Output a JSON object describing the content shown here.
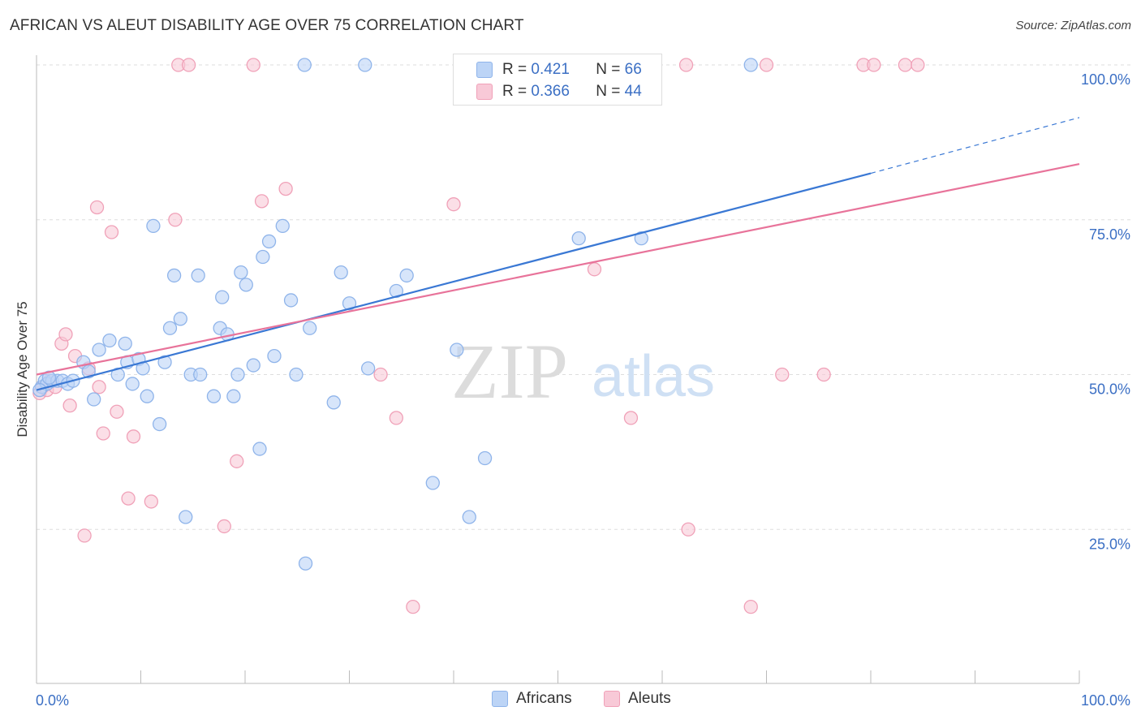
{
  "title": "AFRICAN VS ALEUT DISABILITY AGE OVER 75 CORRELATION CHART",
  "source": "Source: ZipAtlas.com",
  "watermark": {
    "zip": "ZIP",
    "atlas": "atlas"
  },
  "legend": {
    "africans": {
      "label": "Africans",
      "color": "#8fb4ea",
      "fill": "#bcd4f6"
    },
    "aleuts": {
      "label": "Aleuts",
      "color": "#f0a1b8",
      "fill": "#f8c9d7"
    }
  },
  "stats": {
    "africans": {
      "r_label": "R =",
      "r_value": "0.421",
      "n_label": "N =",
      "n_value": "66"
    },
    "aleuts": {
      "r_label": "R =",
      "r_value": "0.366",
      "n_label": "N =",
      "n_value": "44"
    }
  },
  "chart_data": {
    "type": "scatter",
    "title": "AFRICAN VS ALEUT DISABILITY AGE OVER 75 CORRELATION CHART",
    "xlabel": "",
    "ylabel": "Disability Age Over 75",
    "xlim": [
      0,
      100
    ],
    "ylim": [
      0,
      105
    ],
    "x_tick_labels": [
      "0.0%",
      "100.0%"
    ],
    "y_tick_labels": [
      {
        "value": 100,
        "label": "100.0%"
      },
      {
        "value": 75,
        "label": "75.0%"
      },
      {
        "value": 50,
        "label": "50.0%"
      },
      {
        "value": 25,
        "label": "25.0%"
      }
    ],
    "grid": true,
    "legend_position": "bottom",
    "series": [
      {
        "name": "Africans",
        "color": "#3a78d4",
        "points": [
          [
            0.5,
            48
          ],
          [
            0.8,
            49
          ],
          [
            1,
            48.5
          ],
          [
            1.5,
            49
          ],
          [
            2,
            49
          ],
          [
            2.5,
            49
          ],
          [
            3,
            48.5
          ],
          [
            3.5,
            49
          ],
          [
            4.5,
            52
          ],
          [
            5,
            50.5
          ],
          [
            5.5,
            46
          ],
          [
            6,
            54
          ],
          [
            7,
            55.5
          ],
          [
            7.8,
            50
          ],
          [
            8.5,
            55
          ],
          [
            8.7,
            52
          ],
          [
            9.2,
            48.5
          ],
          [
            9.8,
            52.5
          ],
          [
            10.2,
            51
          ],
          [
            10.6,
            46.5
          ],
          [
            11.2,
            74
          ],
          [
            11.8,
            42
          ],
          [
            12.3,
            52
          ],
          [
            12.8,
            57.5
          ],
          [
            13.2,
            66
          ],
          [
            13.8,
            59
          ],
          [
            14.3,
            27
          ],
          [
            14.8,
            50
          ],
          [
            15.5,
            66
          ],
          [
            15.7,
            50
          ],
          [
            17,
            46.5
          ],
          [
            17.6,
            57.5
          ],
          [
            17.8,
            62.5
          ],
          [
            18.3,
            56.5
          ],
          [
            18.9,
            46.5
          ],
          [
            19.3,
            50
          ],
          [
            19.6,
            66.5
          ],
          [
            20.1,
            64.5
          ],
          [
            20.8,
            51.5
          ],
          [
            21.4,
            38
          ],
          [
            21.7,
            69
          ],
          [
            22.3,
            71.5
          ],
          [
            22.8,
            53
          ],
          [
            23.6,
            74
          ],
          [
            24.4,
            62
          ],
          [
            24.9,
            50
          ],
          [
            25.7,
            100
          ],
          [
            25.8,
            19.5
          ],
          [
            26.2,
            57.5
          ],
          [
            28.5,
            45.5
          ],
          [
            29.2,
            66.5
          ],
          [
            30,
            61.5
          ],
          [
            31.5,
            100
          ],
          [
            31.8,
            51
          ],
          [
            34.5,
            63.5
          ],
          [
            35.5,
            66
          ],
          [
            38,
            32.5
          ],
          [
            40.3,
            54
          ],
          [
            41.5,
            27
          ],
          [
            43,
            36.5
          ],
          [
            52,
            72
          ],
          [
            58,
            72
          ],
          [
            59,
            100
          ],
          [
            68.5,
            100
          ],
          [
            0.3,
            47.5
          ],
          [
            1.2,
            49.5
          ]
        ]
      },
      {
        "name": "Aleuts",
        "color": "#e8739a",
        "points": [
          [
            0.3,
            47
          ],
          [
            0.6,
            48
          ],
          [
            1,
            47.5
          ],
          [
            1.3,
            49
          ],
          [
            1.8,
            48
          ],
          [
            2.4,
            55
          ],
          [
            2.8,
            56.5
          ],
          [
            3.2,
            45
          ],
          [
            3.7,
            53
          ],
          [
            4.6,
            24
          ],
          [
            5,
            51
          ],
          [
            5.8,
            77
          ],
          [
            6,
            48
          ],
          [
            6.4,
            40.5
          ],
          [
            7.2,
            73
          ],
          [
            7.7,
            44
          ],
          [
            8.8,
            30
          ],
          [
            9.3,
            40
          ],
          [
            11,
            29.5
          ],
          [
            13.3,
            75
          ],
          [
            13.6,
            100
          ],
          [
            14.6,
            100
          ],
          [
            18,
            25.5
          ],
          [
            19.2,
            36
          ],
          [
            20.8,
            100
          ],
          [
            21.6,
            78
          ],
          [
            23.9,
            80
          ],
          [
            33,
            50
          ],
          [
            34.5,
            43
          ],
          [
            36.1,
            12.5
          ],
          [
            40,
            77.5
          ],
          [
            46.8,
            100
          ],
          [
            53.5,
            67
          ],
          [
            57,
            43
          ],
          [
            62.3,
            100
          ],
          [
            62.5,
            25
          ],
          [
            68.5,
            12.5
          ],
          [
            70,
            100
          ],
          [
            71.5,
            50
          ],
          [
            75.5,
            50
          ],
          [
            79.3,
            100
          ],
          [
            80.3,
            100
          ],
          [
            83.3,
            100
          ],
          [
            84.5,
            100
          ]
        ]
      }
    ],
    "trendlines": [
      {
        "series": "Africans",
        "x0": 0,
        "y0": 47.5,
        "x1": 80,
        "y1": 82.5,
        "dashed_to_x": 100,
        "dashed_to_y": 91.5
      },
      {
        "series": "Aleuts",
        "x0": 0,
        "y0": 50,
        "x1": 100,
        "y1": 84
      }
    ]
  }
}
